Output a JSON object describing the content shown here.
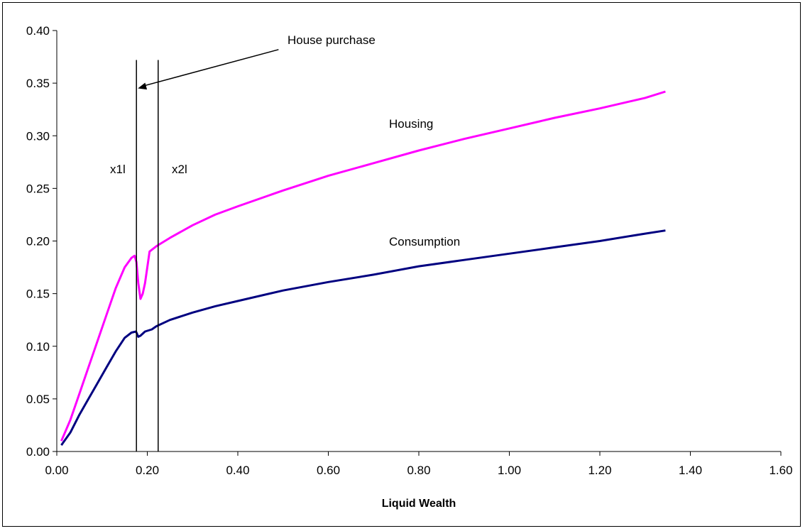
{
  "chart_data": {
    "type": "line",
    "title": "",
    "xlabel": "Liquid Wealth",
    "ylabel": "",
    "xlim": [
      0,
      1.6
    ],
    "ylim": [
      0,
      0.4
    ],
    "x_ticks": [
      "0.00",
      "0.20",
      "0.40",
      "0.60",
      "0.80",
      "1.00",
      "1.20",
      "1.40",
      "1.60"
    ],
    "y_ticks": [
      "0.00",
      "0.05",
      "0.10",
      "0.15",
      "0.20",
      "0.25",
      "0.30",
      "0.35",
      "0.40"
    ],
    "grid": false,
    "legend": "none",
    "series": [
      {
        "name": "Housing",
        "color": "#ff00ff",
        "points": [
          [
            0.01,
            0.01
          ],
          [
            0.03,
            0.03
          ],
          [
            0.05,
            0.055
          ],
          [
            0.07,
            0.08
          ],
          [
            0.09,
            0.105
          ],
          [
            0.11,
            0.13
          ],
          [
            0.13,
            0.155
          ],
          [
            0.15,
            0.175
          ],
          [
            0.165,
            0.184
          ],
          [
            0.172,
            0.186
          ],
          [
            0.176,
            0.18
          ],
          [
            0.18,
            0.16
          ],
          [
            0.185,
            0.145
          ],
          [
            0.19,
            0.15
          ],
          [
            0.195,
            0.16
          ],
          [
            0.2,
            0.175
          ],
          [
            0.205,
            0.19
          ],
          [
            0.22,
            0.195
          ],
          [
            0.25,
            0.203
          ],
          [
            0.3,
            0.215
          ],
          [
            0.35,
            0.225
          ],
          [
            0.4,
            0.233
          ],
          [
            0.5,
            0.248
          ],
          [
            0.6,
            0.262
          ],
          [
            0.7,
            0.274
          ],
          [
            0.8,
            0.286
          ],
          [
            0.9,
            0.297
          ],
          [
            1.0,
            0.307
          ],
          [
            1.1,
            0.317
          ],
          [
            1.2,
            0.326
          ],
          [
            1.3,
            0.336
          ],
          [
            1.345,
            0.342
          ]
        ]
      },
      {
        "name": "Consumption",
        "color": "#000080",
        "points": [
          [
            0.01,
            0.006
          ],
          [
            0.03,
            0.018
          ],
          [
            0.05,
            0.035
          ],
          [
            0.07,
            0.05
          ],
          [
            0.09,
            0.065
          ],
          [
            0.11,
            0.08
          ],
          [
            0.13,
            0.095
          ],
          [
            0.15,
            0.108
          ],
          [
            0.165,
            0.113
          ],
          [
            0.175,
            0.114
          ],
          [
            0.18,
            0.109
          ],
          [
            0.185,
            0.11
          ],
          [
            0.195,
            0.114
          ],
          [
            0.21,
            0.116
          ],
          [
            0.22,
            0.119
          ],
          [
            0.25,
            0.125
          ],
          [
            0.3,
            0.132
          ],
          [
            0.35,
            0.138
          ],
          [
            0.4,
            0.143
          ],
          [
            0.5,
            0.153
          ],
          [
            0.6,
            0.161
          ],
          [
            0.7,
            0.168
          ],
          [
            0.8,
            0.176
          ],
          [
            0.9,
            0.182
          ],
          [
            1.0,
            0.188
          ],
          [
            1.1,
            0.194
          ],
          [
            1.2,
            0.2
          ],
          [
            1.3,
            0.207
          ],
          [
            1.345,
            0.21
          ]
        ]
      }
    ],
    "vertical_lines": [
      {
        "label": "x1l",
        "x": 0.176
      },
      {
        "label": "x2l",
        "x": 0.224
      }
    ],
    "annotations": [
      {
        "text": "House purchase",
        "arrow_to_x": 0.176,
        "arrow_to_y": 0.345,
        "from_x": 0.49,
        "from_y": 0.39
      }
    ],
    "series_labels": {
      "Housing": "Housing",
      "Consumption": "Consumption"
    }
  }
}
